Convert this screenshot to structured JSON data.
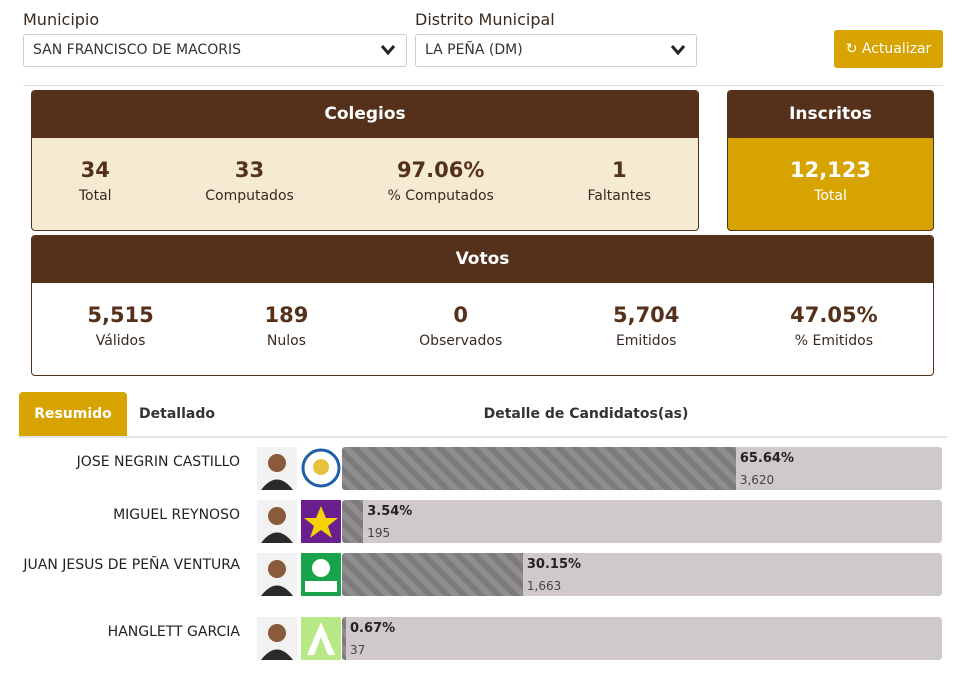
{
  "filters": {
    "municipio": {
      "label": "Municipio",
      "value": "SAN FRANCISCO DE MACORIS"
    },
    "distrito": {
      "label": "Distrito Municipal",
      "value": "LA PEÑA (DM)"
    },
    "button": "Actualizar"
  },
  "colegios": {
    "title": "Colegios",
    "stats": [
      {
        "value": "34",
        "label": "Total"
      },
      {
        "value": "33",
        "label": "Computados"
      },
      {
        "value": "97.06%",
        "label": "% Computados"
      },
      {
        "value": "1",
        "label": "Faltantes"
      }
    ]
  },
  "inscritos": {
    "title": "Inscritos",
    "value": "12,123",
    "label": "Total"
  },
  "votos": {
    "title": "Votos",
    "stats": [
      {
        "value": "5,515",
        "label": "Válidos"
      },
      {
        "value": "189",
        "label": "Nulos"
      },
      {
        "value": "0",
        "label": "Observados"
      },
      {
        "value": "5,704",
        "label": "Emitidos"
      },
      {
        "value": "47.05%",
        "label": "% Emitidos"
      }
    ]
  },
  "tabs": [
    "Resumido",
    "Detallado"
  ],
  "detail_title": "Detalle de Candidatos(as)",
  "candidates": [
    {
      "name": "JOSE NEGRIN CASTILLO",
      "percent": 65.64,
      "percent_label": "65.64%",
      "votes": "3,620"
    },
    {
      "name": "MIGUEL REYNOSO",
      "percent": 3.54,
      "percent_label": "3.54%",
      "votes": "195"
    },
    {
      "name": "JUAN JESUS DE PEÑA VENTURA",
      "percent": 30.15,
      "percent_label": "30.15%",
      "votes": "1,663"
    },
    {
      "name": "HANGLETT GARCIA",
      "percent": 0.67,
      "percent_label": "0.67%",
      "votes": "37"
    }
  ]
}
